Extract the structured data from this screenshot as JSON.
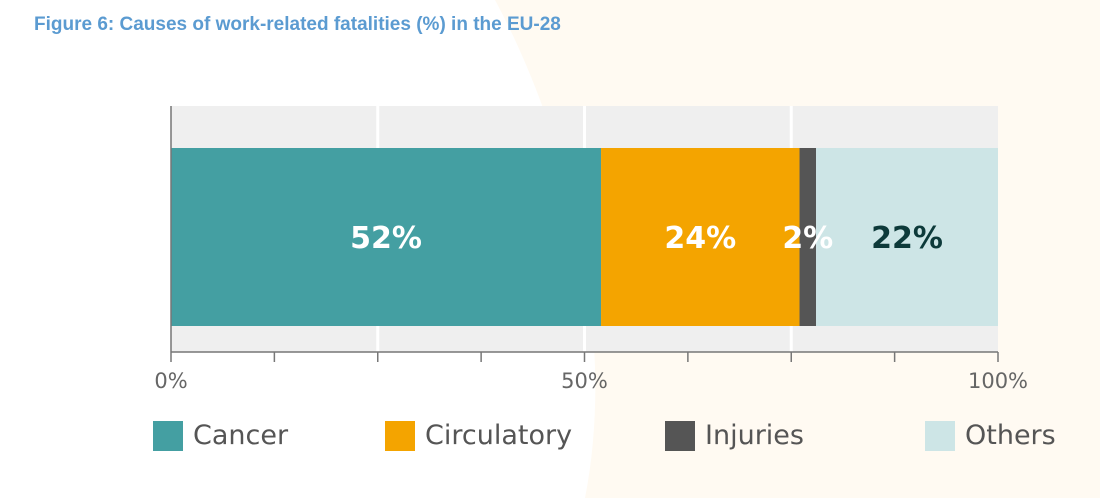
{
  "figure": {
    "title": "Figure 6: Causes of work-related fatalities (%) in the EU-28"
  },
  "colors": {
    "cancer": "#449fa2",
    "circulatory": "#f4a400",
    "injuries": "#555555",
    "others": "#cde5e6",
    "plot_bg": "#efefef",
    "title": "#5b9bd1"
  },
  "chart_data": {
    "type": "bar",
    "orientation": "horizontal",
    "stacked": true,
    "categories": [
      ""
    ],
    "series": [
      {
        "name": "Cancer",
        "values": [
          52
        ],
        "label": "52%",
        "color": "#449fa2",
        "label_color": "#ffffff"
      },
      {
        "name": "Circulatory",
        "values": [
          24
        ],
        "label": "24%",
        "color": "#f4a400",
        "label_color": "#ffffff"
      },
      {
        "name": "Injuries",
        "values": [
          2
        ],
        "label": "2%",
        "color": "#555555",
        "label_color": "#ffffff"
      },
      {
        "name": "Others",
        "values": [
          22
        ],
        "label": "22%",
        "color": "#cde5e6",
        "label_color": "#0d3a3a"
      }
    ],
    "xlim": [
      0,
      100
    ],
    "xticks": [
      0,
      50,
      100
    ],
    "xtick_labels": [
      "0%",
      "50%",
      "100%"
    ],
    "grid": true,
    "legend_position": "bottom"
  }
}
